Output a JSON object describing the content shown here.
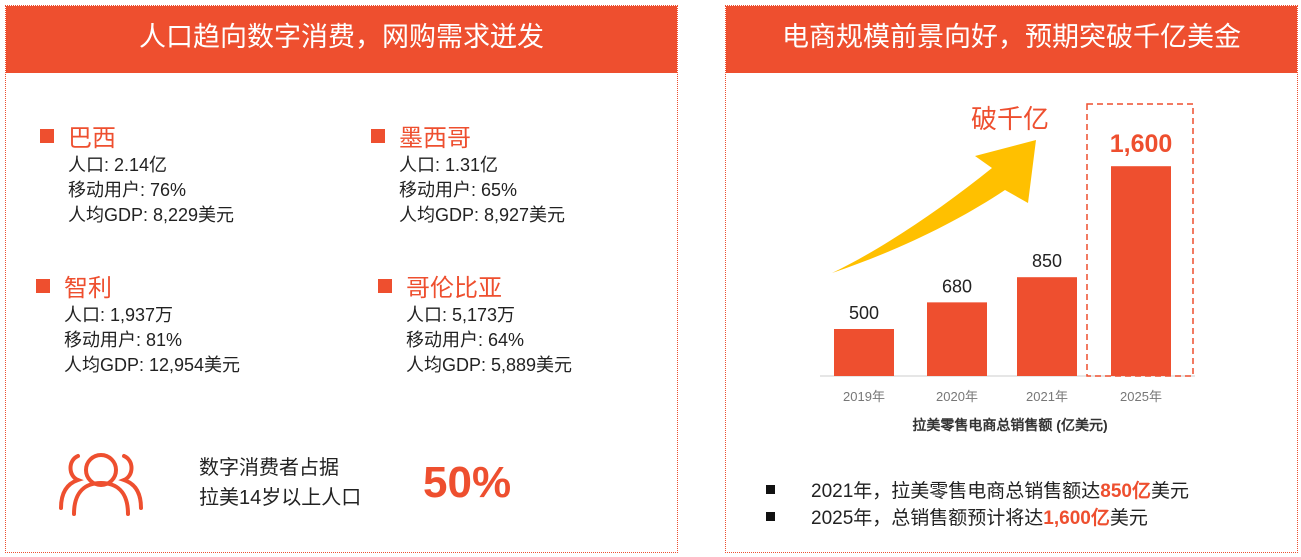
{
  "left": {
    "title": "人口趋向数字消费，网购需求迸发",
    "countries": [
      {
        "name": "巴西",
        "population": "人口: 2.14亿",
        "mobile": "移动用户: 76%",
        "gdp": "人均GDP: 8,229美元"
      },
      {
        "name": "墨西哥",
        "population": "人口: 1.31亿",
        "mobile": "移动用户: 65%",
        "gdp": "人均GDP: 8,927美元"
      },
      {
        "name": "智利",
        "population": "人口: 1,937万",
        "mobile": "移动用户: 81%",
        "gdp": "人均GDP: 12,954美元"
      },
      {
        "name": "哥伦比亚",
        "population": "人口: 5,173万",
        "mobile": "移动用户: 64%",
        "gdp": "人均GDP: 5,889美元"
      }
    ],
    "summary_line1": "数字消费者占据",
    "summary_line2": "拉美14岁以上人口",
    "summary_value": "50%"
  },
  "right": {
    "title": "电商规模前景向好，预期突破千亿美金",
    "arrow_label": "破千亿",
    "bullets": [
      {
        "pre": "2021年，拉美零售电商总销售额达",
        "hl": "850亿",
        "post": "美元"
      },
      {
        "pre": "2025年，总销售额预计将达",
        "hl": "1,600亿",
        "post": "美元"
      }
    ]
  },
  "chart_data": {
    "type": "bar",
    "categories": [
      "2019年",
      "2020年",
      "2021年",
      "2025年"
    ],
    "values": [
      500,
      680,
      850,
      1600
    ],
    "value_labels": [
      "500",
      "680",
      "850",
      "1,600"
    ],
    "xlabel": "拉美零售电商总销售额 (亿美元)",
    "bar_color": "#ee4f2f"
  }
}
